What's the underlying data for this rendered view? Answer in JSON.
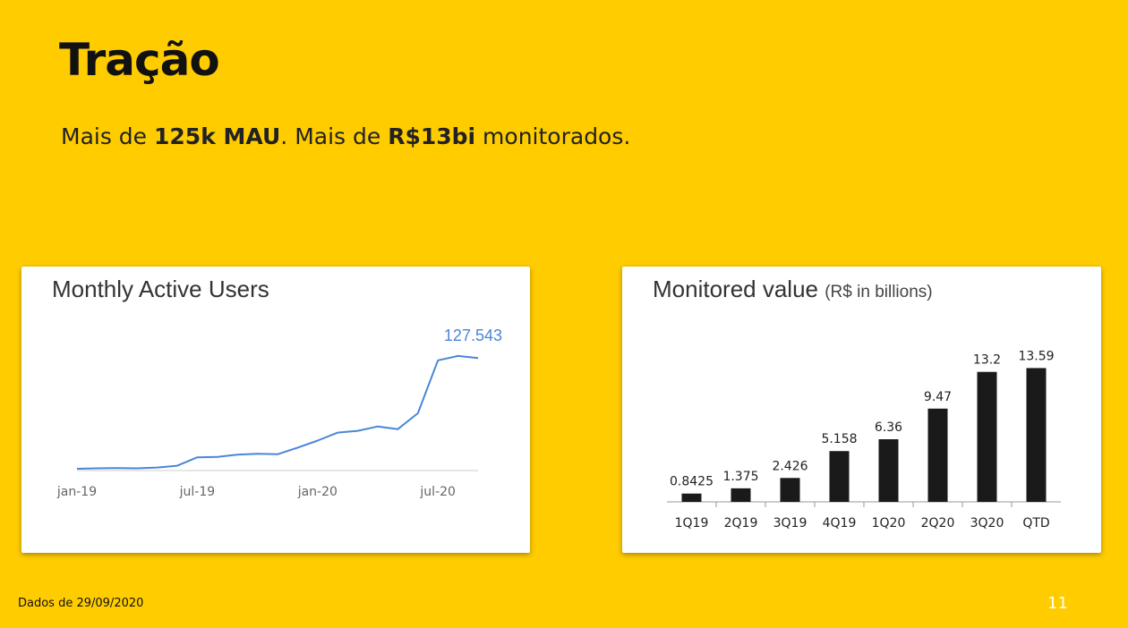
{
  "slide": {
    "title": "Tração",
    "subtitle": {
      "p1": "Mais de ",
      "b1": "125k MAU",
      "p2": ". Mais de ",
      "b2": "R$13bi",
      "p3": " monitorados."
    },
    "footer": "Dados de 29/09/2020",
    "page_number": "11",
    "colors": {
      "background": "#FFCC00",
      "line": "#4A86D8",
      "bar": "#1a1a1a"
    }
  },
  "chart_data": [
    {
      "type": "line",
      "title": "Monthly Active Users",
      "x_ticks": [
        "jan-19",
        "jul-19",
        "jan-20",
        "jul-20"
      ],
      "last_value_label": "127.543",
      "series": [
        {
          "x": [
            "2019-01",
            "2019-02",
            "2019-03",
            "2019-04",
            "2019-05",
            "2019-06",
            "2019-07",
            "2019-08",
            "2019-09",
            "2019-10",
            "2019-11",
            "2019-12",
            "2020-01",
            "2020-02",
            "2020-03",
            "2020-04",
            "2020-05",
            "2020-06",
            "2020-07",
            "2020-08",
            "2020-09"
          ],
          "values": [
            2000,
            2500,
            2800,
            2500,
            3500,
            5500,
            15000,
            15500,
            18000,
            19000,
            18500,
            26000,
            34000,
            43000,
            45000,
            50000,
            47000,
            65000,
            125000,
            130000,
            127543
          ]
        }
      ],
      "ylim": [
        0,
        140000
      ]
    },
    {
      "type": "bar",
      "title": "Monitored value",
      "unit_label": "(R$ in billions)",
      "categories": [
        "1Q19",
        "2Q19",
        "3Q19",
        "4Q19",
        "1Q20",
        "2Q20",
        "3Q20",
        "QTD"
      ],
      "values": [
        0.8425,
        1.375,
        2.426,
        5.158,
        6.36,
        9.47,
        13.2,
        13.59
      ],
      "value_labels": [
        "0.8425",
        "1.375",
        "2.426",
        "5.158",
        "6.36",
        "9.47",
        "13.2",
        "13.59"
      ],
      "ylim": [
        0,
        14
      ]
    }
  ]
}
